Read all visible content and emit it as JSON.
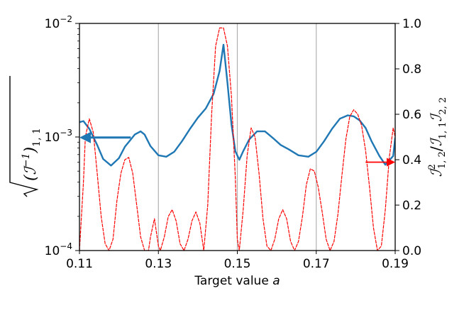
{
  "chart_data": {
    "type": "line",
    "xlabel": "Target value a",
    "xlabel_text": "Target value ",
    "xlabel_var": "a",
    "xlim": [
      0.11,
      0.19
    ],
    "x_ticks": [
      0.11,
      0.13,
      0.15,
      0.17,
      0.19
    ],
    "x_tick_labels": [
      "0.11",
      "0.13",
      "0.15",
      "0.17",
      "0.19"
    ],
    "grid": {
      "vertical": true,
      "horizontal": false
    },
    "left_axis": {
      "scale": "log",
      "ylim": [
        0.0001,
        0.01
      ],
      "ticks": [
        0.0001,
        0.001,
        0.01
      ],
      "tick_labels": [
        {
          "base": "10",
          "exp": "−4"
        },
        {
          "base": "10",
          "exp": "−3"
        },
        {
          "base": "10",
          "exp": "−2"
        }
      ],
      "label": "√((I⁻¹)₁,₁)"
    },
    "right_axis": {
      "scale": "linear",
      "ylim": [
        0.0,
        1.0
      ],
      "ticks": [
        0.0,
        0.2,
        0.4,
        0.6,
        0.8,
        1.0
      ],
      "tick_labels": [
        "0.0",
        "0.2",
        "0.4",
        "0.6",
        "0.8",
        "1.0"
      ],
      "label": "I²₁,₂/I₁,₁I₂,₂"
    },
    "series": [
      {
        "axis": "left",
        "style": "solid",
        "color": "#1f77b4",
        "x": [
          0.11,
          0.111,
          0.1125,
          0.1145,
          0.116,
          0.118,
          0.12,
          0.1215,
          0.123,
          0.124,
          0.1255,
          0.1265,
          0.128,
          0.13,
          0.132,
          0.134,
          0.136,
          0.138,
          0.14,
          0.142,
          0.144,
          0.1455,
          0.1465,
          0.1475,
          0.1485,
          0.1495,
          0.1505,
          0.1515,
          0.153,
          0.155,
          0.157,
          0.159,
          0.161,
          0.163,
          0.1655,
          0.168,
          0.17,
          0.172,
          0.174,
          0.176,
          0.178,
          0.1795,
          0.181,
          0.1825,
          0.184,
          0.186,
          0.1875,
          0.1895,
          0.19
        ],
        "values": [
          0.00135,
          0.00138,
          0.00118,
          0.00085,
          0.00064,
          0.00056,
          0.00065,
          0.00082,
          0.00095,
          0.00105,
          0.00112,
          0.00105,
          0.00083,
          0.00069,
          0.00067,
          0.00074,
          0.00092,
          0.00118,
          0.00148,
          0.00178,
          0.0024,
          0.0038,
          0.0065,
          0.003,
          0.0013,
          0.00075,
          0.00063,
          0.00075,
          0.00095,
          0.00112,
          0.00112,
          0.00098,
          0.00085,
          0.00078,
          0.00069,
          0.00067,
          0.00074,
          0.00092,
          0.00118,
          0.00145,
          0.00155,
          0.00152,
          0.0014,
          0.0012,
          0.00092,
          0.00068,
          0.00057,
          0.00068,
          0.00098
        ]
      },
      {
        "axis": "right",
        "style": "dashed",
        "color": "#ff0000",
        "x": [
          0.11,
          0.111,
          0.1115,
          0.1125,
          0.1135,
          0.1145,
          0.1155,
          0.1165,
          0.1175,
          0.1185,
          0.1195,
          0.1205,
          0.1215,
          0.1225,
          0.1235,
          0.1245,
          0.1255,
          0.1265,
          0.1275,
          0.128,
          0.129,
          0.13,
          0.1305,
          0.1315,
          0.1325,
          0.1335,
          0.1345,
          0.1355,
          0.1365,
          0.1375,
          0.1385,
          0.1395,
          0.1405,
          0.1415,
          0.1425,
          0.1435,
          0.1445,
          0.1455,
          0.1465,
          0.1475,
          0.1485,
          0.1495,
          0.15,
          0.1505,
          0.1515,
          0.1525,
          0.1535,
          0.1545,
          0.1555,
          0.1565,
          0.1575,
          0.1585,
          0.1595,
          0.1605,
          0.1615,
          0.1625,
          0.1635,
          0.1645,
          0.1655,
          0.1665,
          0.1675,
          0.1685,
          0.1695,
          0.1705,
          0.1715,
          0.1725,
          0.1735,
          0.1745,
          0.1755,
          0.1765,
          0.1775,
          0.1785,
          0.1795,
          0.1805,
          0.1815,
          0.1825,
          0.1835,
          0.1845,
          0.1855,
          0.1865,
          0.1875,
          0.1885,
          0.1895,
          0.19
        ],
        "values": [
          0.0,
          0.3,
          0.5,
          0.58,
          0.52,
          0.34,
          0.15,
          0.03,
          0.0,
          0.05,
          0.22,
          0.34,
          0.4,
          0.41,
          0.34,
          0.2,
          0.06,
          0.0,
          0.0,
          0.06,
          0.14,
          0.02,
          0.0,
          0.06,
          0.15,
          0.18,
          0.13,
          0.03,
          0.0,
          0.05,
          0.13,
          0.17,
          0.12,
          0.0,
          0.2,
          0.6,
          0.9,
          0.98,
          0.98,
          0.9,
          0.68,
          0.32,
          0.05,
          0.0,
          0.18,
          0.42,
          0.54,
          0.5,
          0.34,
          0.14,
          0.02,
          0.0,
          0.05,
          0.14,
          0.18,
          0.14,
          0.04,
          0.0,
          0.04,
          0.15,
          0.29,
          0.36,
          0.35,
          0.28,
          0.17,
          0.05,
          0.0,
          0.04,
          0.16,
          0.33,
          0.49,
          0.59,
          0.62,
          0.6,
          0.55,
          0.44,
          0.28,
          0.1,
          0.0,
          0.02,
          0.18,
          0.41,
          0.54,
          0.5
        ]
      }
    ],
    "annotations": [
      {
        "type": "arrow",
        "color": "#1f77b4",
        "from": {
          "x": 0.123,
          "y": 0.00099
        },
        "to": {
          "x": 0.11,
          "y": 0.00099
        },
        "meaning": "points to left axis"
      },
      {
        "type": "arrow",
        "color": "#ff0000",
        "from": {
          "x": 0.1825,
          "y": 0.0006
        },
        "to": {
          "x": 0.19,
          "y": 0.0006
        },
        "meaning": "points to right axis"
      }
    ]
  }
}
